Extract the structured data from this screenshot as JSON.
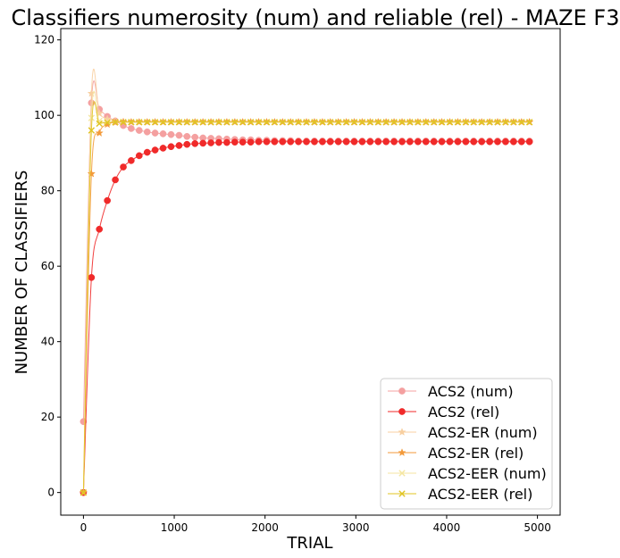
{
  "chart_data": {
    "type": "line",
    "title": "Classifiers numerosity (num) and reliable (rel) - MAZE F3",
    "xlabel": "TRIAL",
    "ylabel": "NUMBER OF CLASSIFIERS",
    "xlim": [
      -250,
      5250
    ],
    "ylim": [
      -6,
      123
    ],
    "xticks": [
      0,
      1000,
      2000,
      3000,
      4000,
      5000
    ],
    "yticks": [
      0,
      20,
      40,
      60,
      80,
      100,
      120
    ],
    "grid": false,
    "legend_position": "lower-right",
    "series": [
      {
        "name": "ACS2 (num)",
        "color": "#f4a0a0",
        "marker": "circle",
        "x": [
          0,
          88,
          175,
          263,
          351,
          439,
          526,
          614,
          702,
          789,
          877,
          965,
          1053,
          1140,
          1228,
          1316,
          1404,
          1491,
          1579,
          1667,
          1754,
          1842,
          1930,
          2018,
          2105,
          2193,
          2281,
          2368,
          2456,
          2544,
          2632,
          2719,
          2807,
          2895,
          2982,
          3070,
          3158,
          3246,
          3333,
          3421,
          3509,
          3596,
          3684,
          3772,
          3860,
          3947,
          4035,
          4123,
          4211,
          4298,
          4386,
          4474,
          4561,
          4649,
          4737,
          4825,
          4912
        ],
        "y": [
          18.8,
          103.3,
          101.6,
          99.7,
          98.5,
          97.3,
          96.5,
          96.0,
          95.6,
          95.3,
          95.1,
          94.9,
          94.7,
          94.4,
          94.2,
          94.0,
          93.9,
          93.8,
          93.7,
          93.6,
          93.5,
          93.5,
          93.4,
          93.4,
          93.3,
          93.3,
          93.3,
          93.2,
          93.2,
          93.2,
          93.2,
          93.2,
          93.2,
          93.2,
          93.2,
          93.2,
          93.2,
          93.2,
          93.2,
          93.2,
          93.2,
          93.2,
          93.2,
          93.2,
          93.2,
          93.2,
          93.2,
          93.2,
          93.2,
          93.2,
          93.2,
          93.2,
          93.2,
          93.2,
          93.2,
          93.2,
          93.2
        ]
      },
      {
        "name": "ACS2 (rel)",
        "color": "#f02a2a",
        "marker": "circle",
        "x": [
          0,
          88,
          175,
          263,
          351,
          439,
          526,
          614,
          702,
          789,
          877,
          965,
          1053,
          1140,
          1228,
          1316,
          1404,
          1491,
          1579,
          1667,
          1754,
          1842,
          1930,
          2018,
          2105,
          2193,
          2281,
          2368,
          2456,
          2544,
          2632,
          2719,
          2807,
          2895,
          2982,
          3070,
          3158,
          3246,
          3333,
          3421,
          3509,
          3596,
          3684,
          3772,
          3860,
          3947,
          4035,
          4123,
          4211,
          4298,
          4386,
          4474,
          4561,
          4649,
          4737,
          4825,
          4912
        ],
        "y": [
          0,
          57.0,
          69.8,
          77.4,
          82.9,
          86.3,
          88.0,
          89.3,
          90.2,
          90.8,
          91.3,
          91.7,
          92.0,
          92.3,
          92.5,
          92.6,
          92.7,
          92.8,
          92.8,
          92.9,
          92.9,
          92.9,
          93.0,
          93.0,
          93.0,
          93.0,
          93.0,
          93.0,
          93.0,
          93.0,
          93.0,
          93.0,
          93.0,
          93.0,
          93.0,
          93.0,
          93.0,
          93.0,
          93.0,
          93.0,
          93.0,
          93.0,
          93.0,
          93.0,
          93.0,
          93.0,
          93.0,
          93.0,
          93.0,
          93.0,
          93.0,
          93.0,
          93.0,
          93.0,
          93.0,
          93.0,
          93.0
        ]
      },
      {
        "name": "ACS2-ER (num)",
        "color": "#f8cfa0",
        "marker": "star",
        "x": [
          0,
          88,
          175,
          263,
          351,
          439,
          526,
          614,
          702,
          789,
          877,
          965,
          1053,
          1140,
          1228,
          1316,
          1404,
          1491,
          1579,
          1667,
          1754,
          1842,
          1930,
          2018,
          2105,
          2193,
          2281,
          2368,
          2456,
          2544,
          2632,
          2719,
          2807,
          2895,
          2982,
          3070,
          3158,
          3246,
          3333,
          3421,
          3509,
          3596,
          3684,
          3772,
          3860,
          3947,
          4035,
          4123,
          4211,
          4298,
          4386,
          4474,
          4561,
          4649,
          4737,
          4825,
          4912
        ],
        "y": [
          0,
          105.8,
          100.5,
          99.0,
          98.5,
          98.3,
          98.2,
          98.2,
          98.2,
          98.2,
          98.2,
          98.2,
          98.2,
          98.2,
          98.2,
          98.2,
          98.2,
          98.2,
          98.2,
          98.2,
          98.2,
          98.2,
          98.2,
          98.2,
          98.2,
          98.2,
          98.2,
          98.2,
          98.2,
          98.2,
          98.2,
          98.2,
          98.2,
          98.2,
          98.2,
          98.2,
          98.2,
          98.2,
          98.2,
          98.2,
          98.2,
          98.2,
          98.2,
          98.2,
          98.2,
          98.2,
          98.2,
          98.2,
          98.2,
          98.2,
          98.2,
          98.2,
          98.2,
          98.2,
          98.2,
          98.2,
          98.2
        ]
      },
      {
        "name": "ACS2-ER (rel)",
        "color": "#f39a3a",
        "marker": "star",
        "x": [
          0,
          88,
          175,
          263,
          351,
          439,
          526,
          614,
          702,
          789,
          877,
          965,
          1053,
          1140,
          1228,
          1316,
          1404,
          1491,
          1579,
          1667,
          1754,
          1842,
          1930,
          2018,
          2105,
          2193,
          2281,
          2368,
          2456,
          2544,
          2632,
          2719,
          2807,
          2895,
          2982,
          3070,
          3158,
          3246,
          3333,
          3421,
          3509,
          3596,
          3684,
          3772,
          3860,
          3947,
          4035,
          4123,
          4211,
          4298,
          4386,
          4474,
          4561,
          4649,
          4737,
          4825,
          4912
        ],
        "y": [
          0,
          84.5,
          95.3,
          97.6,
          98.1,
          98.2,
          98.2,
          98.2,
          98.2,
          98.2,
          98.2,
          98.2,
          98.2,
          98.2,
          98.2,
          98.2,
          98.2,
          98.2,
          98.2,
          98.2,
          98.2,
          98.2,
          98.2,
          98.2,
          98.2,
          98.2,
          98.2,
          98.2,
          98.2,
          98.2,
          98.2,
          98.2,
          98.2,
          98.2,
          98.2,
          98.2,
          98.2,
          98.2,
          98.2,
          98.2,
          98.2,
          98.2,
          98.2,
          98.2,
          98.2,
          98.2,
          98.2,
          98.2,
          98.2,
          98.2,
          98.2,
          98.2,
          98.2,
          98.2,
          98.2,
          98.2,
          98.2
        ]
      },
      {
        "name": "ACS2-EER (num)",
        "color": "#f5e6a0",
        "marker": "x",
        "x": [
          0,
          88,
          175,
          263,
          351,
          439,
          526,
          614,
          702,
          789,
          877,
          965,
          1053,
          1140,
          1228,
          1316,
          1404,
          1491,
          1579,
          1667,
          1754,
          1842,
          1930,
          2018,
          2105,
          2193,
          2281,
          2368,
          2456,
          2544,
          2632,
          2719,
          2807,
          2895,
          2982,
          3070,
          3158,
          3246,
          3333,
          3421,
          3509,
          3596,
          3684,
          3772,
          3860,
          3947,
          4035,
          4123,
          4211,
          4298,
          4386,
          4474,
          4561,
          4649,
          4737,
          4825,
          4912
        ],
        "y": [
          0,
          99.3,
          98.5,
          98.3,
          98.2,
          98.2,
          98.2,
          98.2,
          98.2,
          98.2,
          98.2,
          98.2,
          98.2,
          98.2,
          98.2,
          98.2,
          98.2,
          98.2,
          98.2,
          98.2,
          98.2,
          98.2,
          98.2,
          98.2,
          98.2,
          98.2,
          98.2,
          98.2,
          98.2,
          98.2,
          98.2,
          98.2,
          98.2,
          98.2,
          98.2,
          98.2,
          98.2,
          98.2,
          98.2,
          98.2,
          98.2,
          98.2,
          98.2,
          98.2,
          98.2,
          98.2,
          98.2,
          98.2,
          98.2,
          98.2,
          98.2,
          98.2,
          98.2,
          98.2,
          98.2,
          98.2,
          98.2
        ]
      },
      {
        "name": "ACS2-EER (rel)",
        "color": "#e0c422",
        "marker": "x",
        "x": [
          0,
          88,
          175,
          263,
          351,
          439,
          526,
          614,
          702,
          789,
          877,
          965,
          1053,
          1140,
          1228,
          1316,
          1404,
          1491,
          1579,
          1667,
          1754,
          1842,
          1930,
          2018,
          2105,
          2193,
          2281,
          2368,
          2456,
          2544,
          2632,
          2719,
          2807,
          2895,
          2982,
          3070,
          3158,
          3246,
          3333,
          3421,
          3509,
          3596,
          3684,
          3772,
          3860,
          3947,
          4035,
          4123,
          4211,
          4298,
          4386,
          4474,
          4561,
          4649,
          4737,
          4825,
          4912
        ],
        "y": [
          0,
          96.0,
          97.8,
          98.1,
          98.2,
          98.2,
          98.2,
          98.2,
          98.2,
          98.2,
          98.2,
          98.2,
          98.2,
          98.2,
          98.2,
          98.2,
          98.2,
          98.2,
          98.2,
          98.2,
          98.2,
          98.2,
          98.2,
          98.2,
          98.2,
          98.2,
          98.2,
          98.2,
          98.2,
          98.2,
          98.2,
          98.2,
          98.2,
          98.2,
          98.2,
          98.2,
          98.2,
          98.2,
          98.2,
          98.2,
          98.2,
          98.2,
          98.2,
          98.2,
          98.2,
          98.2,
          98.2,
          98.2,
          98.2,
          98.2,
          98.2,
          98.2,
          98.2,
          98.2,
          98.2,
          98.2,
          98.2
        ]
      }
    ]
  }
}
